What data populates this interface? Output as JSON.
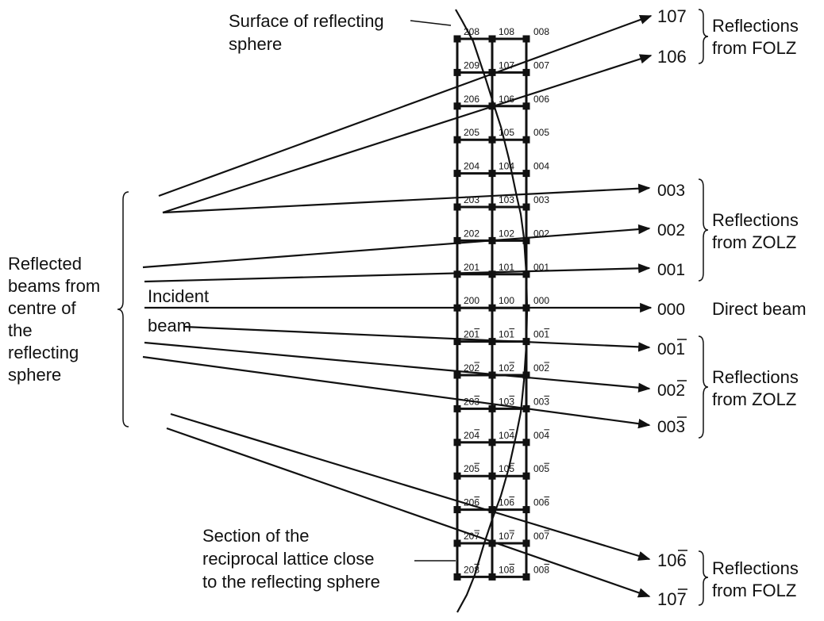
{
  "labels": {
    "surface_line1": "Surface of reflecting",
    "surface_line2": "sphere",
    "reflected_line1": "Reflected",
    "reflected_line2": "beams from",
    "reflected_line3": "centre of",
    "reflected_line4": "the",
    "reflected_line5": "reflecting",
    "reflected_line6": "sphere",
    "incident_line1": "Incident",
    "incident_line2": "beam",
    "section_line1": "Section of the",
    "section_line2": "reciprocal lattice close",
    "section_line3": "to the reflecting sphere",
    "direct_beam": "Direct beam"
  },
  "groups": [
    {
      "line1": "Reflections",
      "line2": "from FOLZ"
    },
    {
      "line1": "Reflections",
      "line2": "from ZOLZ"
    },
    {
      "line1": "Reflections",
      "line2": "from ZOLZ"
    },
    {
      "line1": "Reflections",
      "line2": "from FOLZ"
    }
  ],
  "beam_labels": [
    "107",
    "106",
    "003",
    "002",
    "001",
    "000",
    "00̅",
    "002̅",
    "003̅",
    "106̅",
    "107̅"
  ],
  "beam_text": {
    "b107": "107",
    "b106": "106",
    "b003": "003",
    "b002": "002",
    "b001": "001",
    "b000": "000",
    "b00m1_base": "00",
    "b00m1_bar": "1",
    "b00m2_base": "00",
    "b00m2_bar": "2",
    "b00m3_base": "00",
    "b00m3_bar": "3",
    "b10m6_base": "10",
    "b10m6_bar": "6",
    "b10m7_base": "10",
    "b10m7_bar": "7"
  },
  "lattice_rows": [
    {
      "l": "8",
      "neg": false
    },
    {
      "l": "7",
      "neg": false
    },
    {
      "l": "6",
      "neg": false
    },
    {
      "l": "5",
      "neg": false
    },
    {
      "l": "4",
      "neg": false
    },
    {
      "l": "3",
      "neg": false
    },
    {
      "l": "2",
      "neg": false
    },
    {
      "l": "1",
      "neg": false
    },
    {
      "l": "0",
      "neg": false
    },
    {
      "l": "1",
      "neg": true
    },
    {
      "l": "2",
      "neg": true
    },
    {
      "l": "3",
      "neg": true
    },
    {
      "l": "4",
      "neg": true
    },
    {
      "l": "5",
      "neg": true
    },
    {
      "l": "6",
      "neg": true
    },
    {
      "l": "7",
      "neg": true
    },
    {
      "l": "8",
      "neg": true
    }
  ],
  "row_left_overrides": {
    "1": "209"
  }
}
